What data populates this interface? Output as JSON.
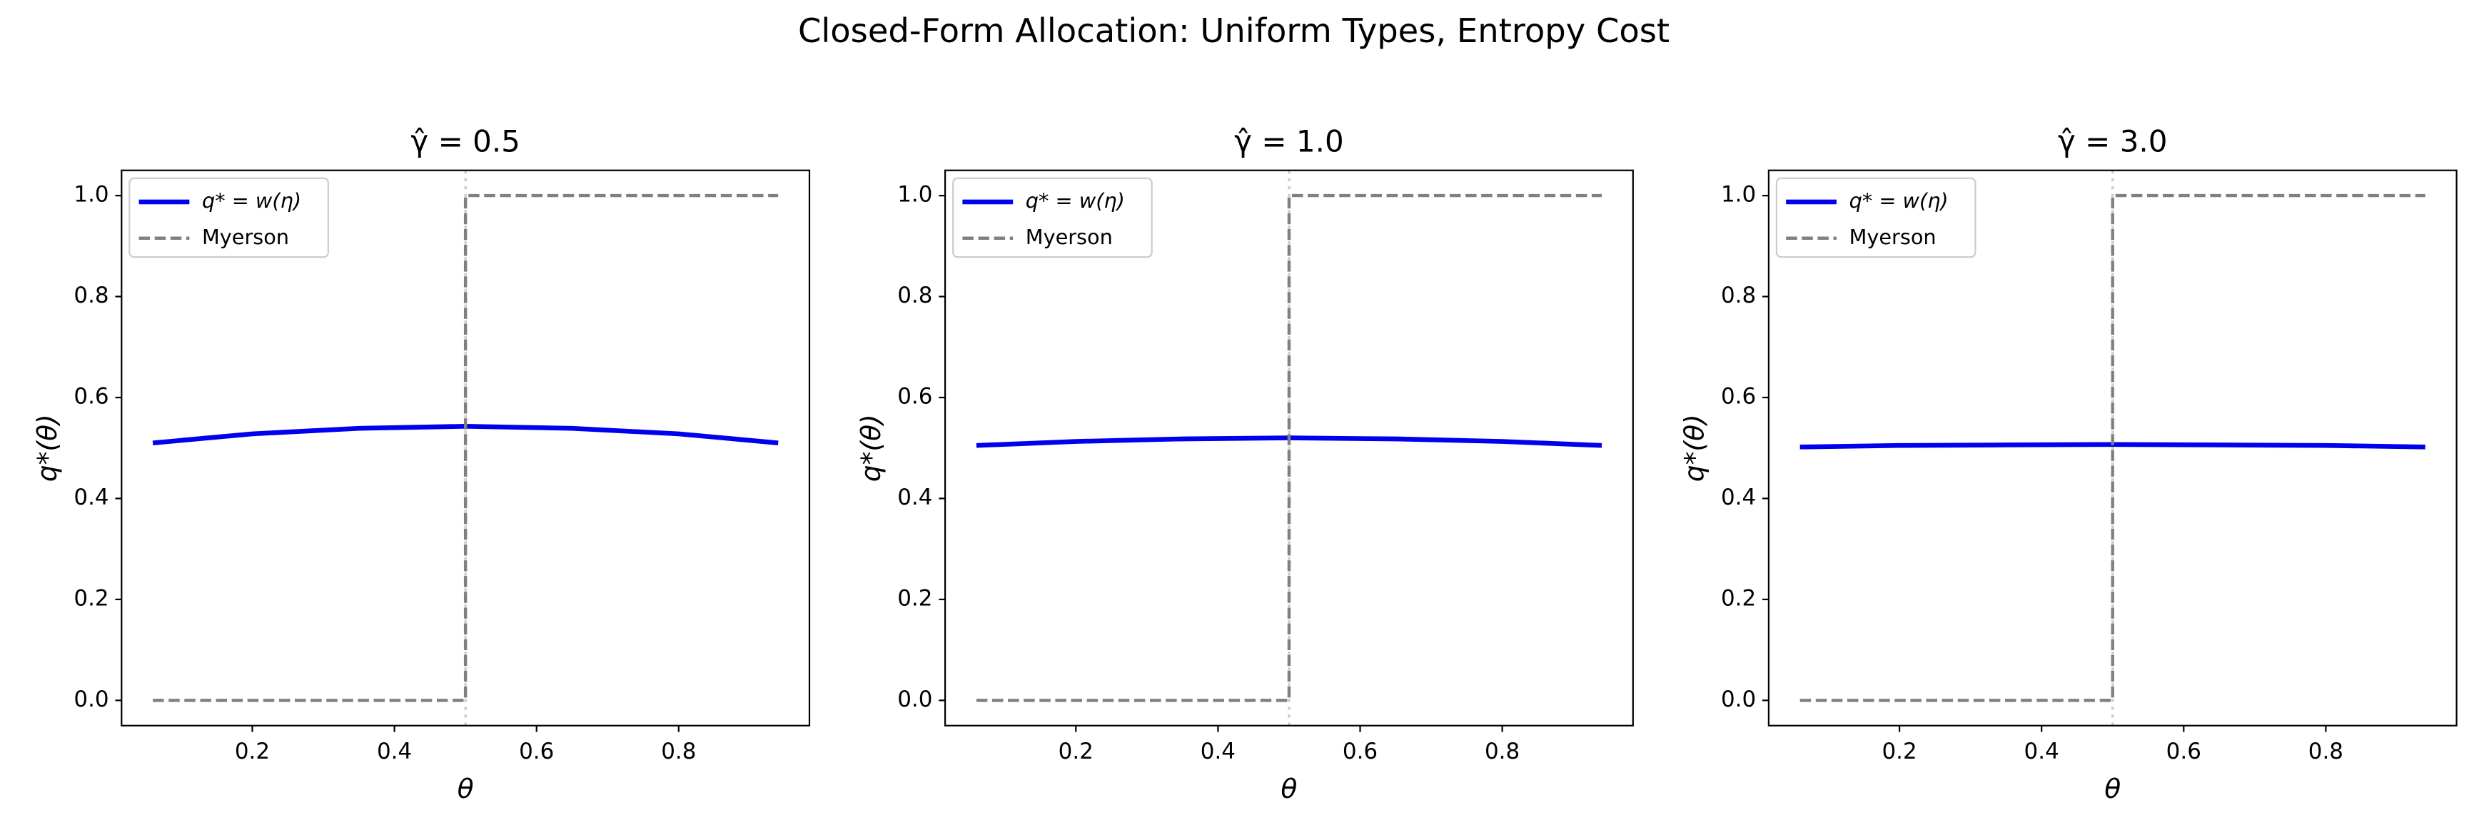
{
  "suptitle": "Closed-Form Allocation: Uniform Types, Entropy Cost",
  "chart_data": [
    {
      "type": "line",
      "title": "γ̂ = 0.5",
      "xlabel": "θ",
      "ylabel": "q*(θ)",
      "xlim": [
        0.016,
        0.984
      ],
      "ylim": [
        -0.05,
        1.05
      ],
      "xticks": [
        0.2,
        0.4,
        0.6,
        0.8
      ],
      "yticks": [
        {
          "value": 0,
          "label": "0.0"
        },
        0.2,
        0.4,
        0.6,
        0.8,
        {
          "value": 1,
          "label": "1.0"
        }
      ],
      "legend": "upper left",
      "vline": 0.5,
      "vline_color": "#cccccc",
      "series": [
        {
          "name": "q* = w(η)",
          "color": "#0000ee",
          "linestyle": "solid",
          "x": [
            0.06,
            0.2,
            0.35,
            0.5,
            0.65,
            0.8,
            0.94
          ],
          "values": [
            0.51,
            0.528,
            0.539,
            0.543,
            0.539,
            0.528,
            0.51
          ]
        },
        {
          "name": "Myerson",
          "color": "#808080",
          "linestyle": "dashed",
          "x": [
            0.06,
            0.5,
            0.5,
            0.94
          ],
          "values": [
            0,
            0,
            1,
            1
          ]
        }
      ]
    },
    {
      "type": "line",
      "title": "γ̂ = 1.0",
      "xlabel": "θ",
      "ylabel": "q*(θ)",
      "xlim": [
        0.016,
        0.984
      ],
      "ylim": [
        -0.05,
        1.05
      ],
      "xticks": [
        0.2,
        0.4,
        0.6,
        0.8
      ],
      "yticks": [
        {
          "value": 0,
          "label": "0.0"
        },
        0.2,
        0.4,
        0.6,
        0.8,
        {
          "value": 1,
          "label": "1.0"
        }
      ],
      "legend": "upper left",
      "vline": 0.5,
      "vline_color": "#cccccc",
      "series": [
        {
          "name": "q* = w(η)",
          "color": "#0000ee",
          "linestyle": "solid",
          "x": [
            0.06,
            0.2,
            0.35,
            0.5,
            0.65,
            0.8,
            0.94
          ],
          "values": [
            0.505,
            0.513,
            0.518,
            0.52,
            0.518,
            0.513,
            0.505
          ]
        },
        {
          "name": "Myerson",
          "color": "#808080",
          "linestyle": "dashed",
          "x": [
            0.06,
            0.5,
            0.5,
            0.94
          ],
          "values": [
            0,
            0,
            1,
            1
          ]
        }
      ]
    },
    {
      "type": "line",
      "title": "γ̂ = 3.0",
      "xlabel": "θ",
      "ylabel": "q*(θ)",
      "xlim": [
        0.016,
        0.984
      ],
      "ylim": [
        -0.05,
        1.05
      ],
      "xticks": [
        0.2,
        0.4,
        0.6,
        0.8
      ],
      "yticks": [
        {
          "value": 0,
          "label": "0.0"
        },
        0.2,
        0.4,
        0.6,
        0.8,
        {
          "value": 1,
          "label": "1.0"
        }
      ],
      "legend": "upper left",
      "vline": 0.5,
      "vline_color": "#cccccc",
      "series": [
        {
          "name": "q* = w(η)",
          "color": "#0000ee",
          "linestyle": "solid",
          "x": [
            0.06,
            0.2,
            0.35,
            0.5,
            0.65,
            0.8,
            0.94
          ],
          "values": [
            0.502,
            0.505,
            0.506,
            0.507,
            0.506,
            0.505,
            0.502
          ]
        },
        {
          "name": "Myerson",
          "color": "#808080",
          "linestyle": "dashed",
          "x": [
            0.06,
            0.5,
            0.5,
            0.94
          ],
          "values": [
            0,
            0,
            1,
            1
          ]
        }
      ]
    }
  ]
}
